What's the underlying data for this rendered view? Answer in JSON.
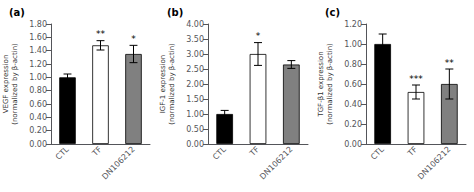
{
  "chart_data": [
    {
      "type": "bar",
      "title": "(a)",
      "ylabel": "VEGF expression\n(normalized by β-actin)",
      "categories": [
        "CTL",
        "TF",
        "DN106212"
      ],
      "values": [
        1.0,
        1.48,
        1.35
      ],
      "errors": [
        0.05,
        0.07,
        0.13
      ],
      "colors": [
        "#000000",
        "#ffffff",
        "#808080"
      ],
      "ylim": [
        0,
        1.8
      ],
      "yticks": [
        {
          "value": 0,
          "label": "0.00"
        },
        {
          "value": 0.2,
          "label": "0.20"
        },
        {
          "value": 0.4,
          "label": "0.40"
        },
        {
          "value": 0.6,
          "label": "0.60"
        },
        {
          "value": 0.8,
          "label": "0.80"
        },
        {
          "value": 1.0,
          "label": "1.00"
        },
        {
          "value": 1.2,
          "label": "1.20"
        },
        {
          "value": 1.4,
          "label": "1.40"
        },
        {
          "value": 1.6,
          "label": "1.60"
        },
        {
          "value": 1.8,
          "label": "1.80"
        }
      ],
      "annotations": [
        {
          "x": "TF",
          "text": "**"
        },
        {
          "x": "DN106212",
          "text": "*"
        }
      ],
      "grid": false
    },
    {
      "type": "bar",
      "title": "(b)",
      "ylabel": "IGF-1 expression\n(normalized by β-actin)",
      "categories": [
        "CTL",
        "TF",
        "DN106212"
      ],
      "values": [
        1.0,
        3.0,
        2.65
      ],
      "errors": [
        0.12,
        0.38,
        0.13
      ],
      "colors": [
        "#000000",
        "#ffffff",
        "#808080"
      ],
      "ylim": [
        0,
        4.0
      ],
      "yticks": [
        {
          "value": 0,
          "label": "0.00"
        },
        {
          "value": 0.5,
          "label": "0.50"
        },
        {
          "value": 1.0,
          "label": "1.00"
        },
        {
          "value": 1.5,
          "label": "1.50"
        },
        {
          "value": 2.0,
          "label": "2.00"
        },
        {
          "value": 2.5,
          "label": "2.50"
        },
        {
          "value": 3.0,
          "label": "3.00"
        },
        {
          "value": 3.5,
          "label": "3.50"
        },
        {
          "value": 4.0,
          "label": "4.00"
        }
      ],
      "annotations": [
        {
          "x": "TF",
          "text": "*"
        }
      ],
      "grid": false
    },
    {
      "type": "bar",
      "title": "(c)",
      "ylabel": "TGF-β1 expression\n(normalized by β-actin)",
      "categories": [
        "CTL",
        "TF",
        "DN106212"
      ],
      "values": [
        1.0,
        0.52,
        0.6
      ],
      "errors": [
        0.1,
        0.07,
        0.15
      ],
      "colors": [
        "#000000",
        "#ffffff",
        "#808080"
      ],
      "ylim": [
        0,
        1.2
      ],
      "yticks": [
        {
          "value": 0,
          "label": "0.00"
        },
        {
          "value": 0.2,
          "label": "0.20"
        },
        {
          "value": 0.4,
          "label": "0.40"
        },
        {
          "value": 0.6,
          "label": "0.60"
        },
        {
          "value": 0.8,
          "label": "0.80"
        },
        {
          "value": 1.0,
          "label": "1.00"
        },
        {
          "value": 1.2,
          "label": "1.20"
        }
      ],
      "annotations": [
        {
          "x": "TF",
          "text": "***"
        },
        {
          "x": "DN106212",
          "text": "**"
        }
      ],
      "grid": false
    }
  ]
}
